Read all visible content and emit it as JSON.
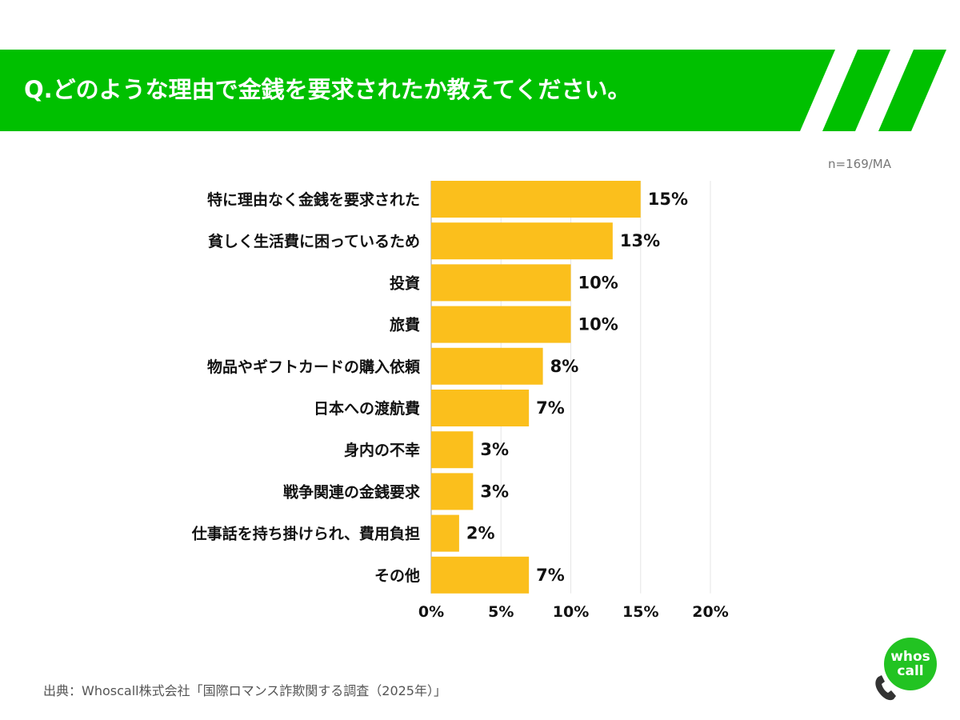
{
  "header": {
    "question": "Q.どのような理由で金銭を要求されたか教えてください。"
  },
  "sample_note": "n=169/MA",
  "footer": {
    "source": "出典：Whoscall株式会社「国際ロマンス詐欺関する調査（2025年）」"
  },
  "logo": {
    "text_line1": "whos",
    "text_line2": "call",
    "icon": "phone-handset-icon"
  },
  "colors": {
    "banner": "#00c000",
    "bar": "#fbbf1c",
    "logo": "#22c322"
  },
  "chart_data": {
    "type": "bar",
    "orientation": "horizontal",
    "categories": [
      "特に理由なく金銭を要求された",
      "貧しく生活費に困っているため",
      "投資",
      "旅費",
      "物品やギフトカードの購入依頼",
      "日本への渡航費",
      "身内の不幸",
      "戦争関連の金銭要求",
      "仕事話を持ち掛けられ、費用負担",
      "その他"
    ],
    "values": [
      15,
      13,
      10,
      10,
      8,
      7,
      3,
      3,
      2,
      7
    ],
    "value_labels": [
      "15%",
      "13%",
      "10%",
      "10%",
      "8%",
      "7%",
      "3%",
      "3%",
      "2%",
      "7%"
    ],
    "xlim": [
      0,
      20
    ],
    "x_ticks": [
      0,
      5,
      10,
      15,
      20
    ],
    "x_tick_labels": [
      "0%",
      "5%",
      "10%",
      "15%",
      "20%"
    ],
    "grid": true,
    "legend": "none"
  }
}
